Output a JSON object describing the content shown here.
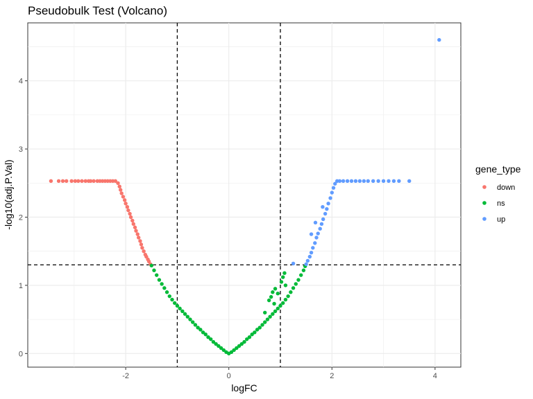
{
  "chart_data": {
    "type": "scatter",
    "title": "Pseudobulk Test (Volcano)",
    "xlabel": "logFC",
    "ylabel": "-log10(adj.P.Val)",
    "xlim": [
      -3.9,
      4.5
    ],
    "ylim": [
      -0.2,
      4.85
    ],
    "x_ticks": [
      -2,
      0,
      2,
      4
    ],
    "y_ticks": [
      0,
      1,
      2,
      3,
      4
    ],
    "grid": true,
    "thresholds": {
      "logFC": [
        -1,
        1
      ],
      "neg_log10_p": 1.3
    },
    "legend": {
      "title": "gene_type",
      "position": "right",
      "entries": [
        {
          "label": "down",
          "color": "#F8766D"
        },
        {
          "label": "ns",
          "color": "#00BA38"
        },
        {
          "label": "up",
          "color": "#619CFF"
        }
      ]
    },
    "series": [
      {
        "name": "down",
        "color": "#F8766D",
        "points": [
          [
            -3.45,
            2.53
          ],
          [
            -3.3,
            2.53
          ],
          [
            -3.22,
            2.53
          ],
          [
            -3.15,
            2.53
          ],
          [
            -3.05,
            2.53
          ],
          [
            -2.98,
            2.53
          ],
          [
            -2.92,
            2.53
          ],
          [
            -2.85,
            2.53
          ],
          [
            -2.78,
            2.53
          ],
          [
            -2.72,
            2.53
          ],
          [
            -2.68,
            2.53
          ],
          [
            -2.62,
            2.53
          ],
          [
            -2.55,
            2.53
          ],
          [
            -2.5,
            2.53
          ],
          [
            -2.45,
            2.53
          ],
          [
            -2.4,
            2.53
          ],
          [
            -2.35,
            2.53
          ],
          [
            -2.3,
            2.53
          ],
          [
            -2.25,
            2.53
          ],
          [
            -2.2,
            2.53
          ],
          [
            -2.15,
            2.5
          ],
          [
            -2.12,
            2.45
          ],
          [
            -2.1,
            2.4
          ],
          [
            -2.08,
            2.35
          ],
          [
            -2.05,
            2.3
          ],
          [
            -2.02,
            2.25
          ],
          [
            -2.0,
            2.2
          ],
          [
            -1.97,
            2.15
          ],
          [
            -1.95,
            2.1
          ],
          [
            -1.92,
            2.05
          ],
          [
            -1.9,
            2.0
          ],
          [
            -1.87,
            1.95
          ],
          [
            -1.85,
            1.9
          ],
          [
            -1.82,
            1.85
          ],
          [
            -1.8,
            1.8
          ],
          [
            -1.77,
            1.75
          ],
          [
            -1.75,
            1.7
          ],
          [
            -1.72,
            1.65
          ],
          [
            -1.7,
            1.6
          ],
          [
            -1.68,
            1.55
          ],
          [
            -1.65,
            1.5
          ],
          [
            -1.62,
            1.45
          ],
          [
            -1.6,
            1.42
          ],
          [
            -1.57,
            1.38
          ],
          [
            -1.55,
            1.35
          ],
          [
            -1.52,
            1.31
          ]
        ]
      },
      {
        "name": "ns",
        "color": "#00BA38",
        "points": [
          [
            -1.5,
            1.29
          ],
          [
            -1.45,
            1.22
          ],
          [
            -1.4,
            1.15
          ],
          [
            -1.35,
            1.08
          ],
          [
            -1.3,
            1.02
          ],
          [
            -1.25,
            0.96
          ],
          [
            -1.2,
            0.9
          ],
          [
            -1.15,
            0.84
          ],
          [
            -1.1,
            0.79
          ],
          [
            -1.05,
            0.74
          ],
          [
            -1.0,
            0.7
          ],
          [
            -0.95,
            0.66
          ],
          [
            -0.9,
            0.62
          ],
          [
            -0.85,
            0.58
          ],
          [
            -0.8,
            0.54
          ],
          [
            -0.75,
            0.5
          ],
          [
            -0.7,
            0.46
          ],
          [
            -0.65,
            0.42
          ],
          [
            -0.6,
            0.38
          ],
          [
            -0.55,
            0.35
          ],
          [
            -0.5,
            0.31
          ],
          [
            -0.45,
            0.28
          ],
          [
            -0.4,
            0.24
          ],
          [
            -0.35,
            0.21
          ],
          [
            -0.3,
            0.17
          ],
          [
            -0.25,
            0.14
          ],
          [
            -0.2,
            0.11
          ],
          [
            -0.15,
            0.08
          ],
          [
            -0.1,
            0.05
          ],
          [
            -0.05,
            0.02
          ],
          [
            0.0,
            0.0
          ],
          [
            0.05,
            0.02
          ],
          [
            0.1,
            0.05
          ],
          [
            0.15,
            0.08
          ],
          [
            0.2,
            0.11
          ],
          [
            0.25,
            0.14
          ],
          [
            0.3,
            0.17
          ],
          [
            0.35,
            0.21
          ],
          [
            0.4,
            0.24
          ],
          [
            0.45,
            0.28
          ],
          [
            0.5,
            0.31
          ],
          [
            0.55,
            0.35
          ],
          [
            0.6,
            0.38
          ],
          [
            0.65,
            0.42
          ],
          [
            0.7,
            0.46
          ],
          [
            0.75,
            0.5
          ],
          [
            0.8,
            0.54
          ],
          [
            0.85,
            0.58
          ],
          [
            0.9,
            0.62
          ],
          [
            0.95,
            0.66
          ],
          [
            1.0,
            0.7
          ],
          [
            1.05,
            0.74
          ],
          [
            1.1,
            0.79
          ],
          [
            1.15,
            0.84
          ],
          [
            1.2,
            0.9
          ],
          [
            1.25,
            0.96
          ],
          [
            1.3,
            1.02
          ],
          [
            1.35,
            1.08
          ],
          [
            1.4,
            1.15
          ],
          [
            1.45,
            1.22
          ],
          [
            1.48,
            1.28
          ],
          [
            0.78,
            0.78
          ],
          [
            0.82,
            0.83
          ],
          [
            0.85,
            0.9
          ],
          [
            0.9,
            0.95
          ],
          [
            0.95,
            0.88
          ],
          [
            1.02,
            1.05
          ],
          [
            1.05,
            1.12
          ],
          [
            1.08,
            1.18
          ],
          [
            1.1,
            1.0
          ],
          [
            0.88,
            0.73
          ],
          [
            0.7,
            0.6
          ]
        ]
      },
      {
        "name": "up",
        "color": "#619CFF",
        "points": [
          [
            1.25,
            1.32
          ],
          [
            1.5,
            1.31
          ],
          [
            1.53,
            1.36
          ],
          [
            1.57,
            1.42
          ],
          [
            1.6,
            1.48
          ],
          [
            1.63,
            1.55
          ],
          [
            1.67,
            1.62
          ],
          [
            1.7,
            1.7
          ],
          [
            1.73,
            1.76
          ],
          [
            1.77,
            1.83
          ],
          [
            1.8,
            1.9
          ],
          [
            1.83,
            1.97
          ],
          [
            1.87,
            2.05
          ],
          [
            1.9,
            2.12
          ],
          [
            1.93,
            2.2
          ],
          [
            1.97,
            2.28
          ],
          [
            2.0,
            2.36
          ],
          [
            2.03,
            2.43
          ],
          [
            2.06,
            2.49
          ],
          [
            2.1,
            2.53
          ],
          [
            2.15,
            2.53
          ],
          [
            2.22,
            2.53
          ],
          [
            2.3,
            2.53
          ],
          [
            2.38,
            2.53
          ],
          [
            2.46,
            2.53
          ],
          [
            2.54,
            2.53
          ],
          [
            2.62,
            2.53
          ],
          [
            2.7,
            2.53
          ],
          [
            2.8,
            2.53
          ],
          [
            2.9,
            2.53
          ],
          [
            3.0,
            2.53
          ],
          [
            3.1,
            2.53
          ],
          [
            3.2,
            2.53
          ],
          [
            3.3,
            2.53
          ],
          [
            3.5,
            2.53
          ],
          [
            1.6,
            1.75
          ],
          [
            1.68,
            1.92
          ],
          [
            1.82,
            2.15
          ],
          [
            4.08,
            4.6
          ]
        ]
      }
    ]
  }
}
